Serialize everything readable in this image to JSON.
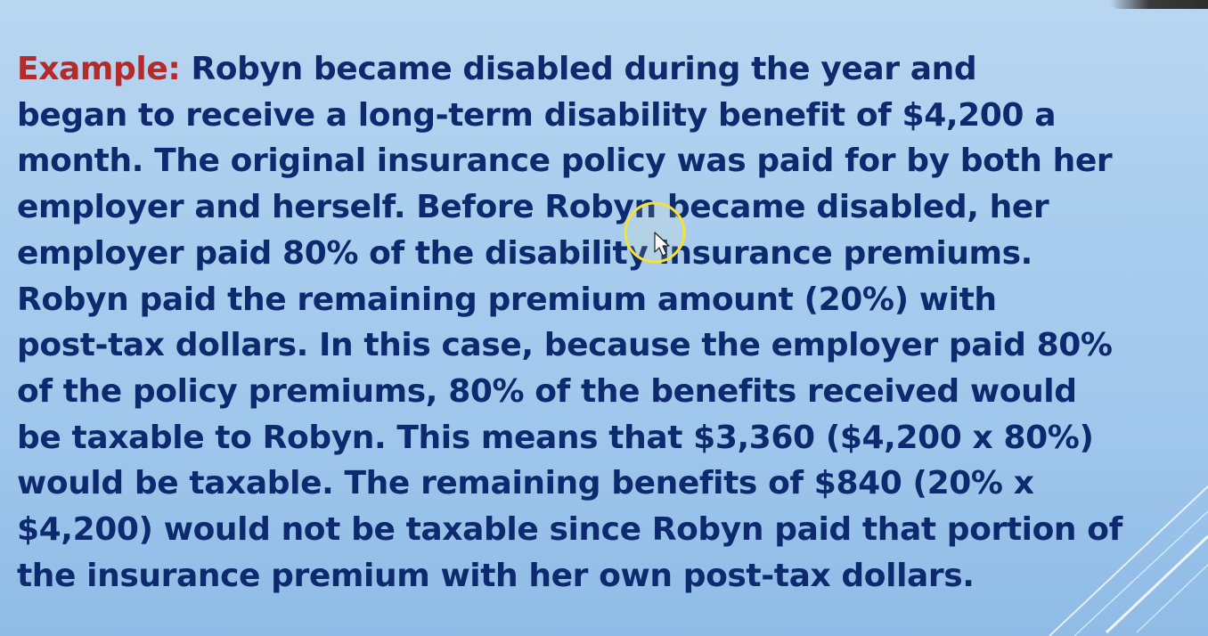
{
  "slide": {
    "label": "Example:",
    "lines": [
      " Robyn became disabled during the year and",
      "began to receive a long-term disability benefit of $4,200 a",
      "month. The original insurance policy was paid for by both her",
      "employer and herself. Before Robyn became disabled, her",
      "employer paid 80% of the disability insurance premiums.",
      "Robyn paid the remaining premium amount (20%) with",
      "post-tax dollars. In this case, because the employer paid 80%",
      "of the policy premiums, 80% of the benefits received would",
      "be taxable to Robyn. This means that $3,360 ($4,200 x 80%)",
      "would be taxable. The remaining benefits of $840 (20% x",
      "$4,200) would not be taxable since Robyn paid that portion of",
      "the insurance premium with her own post-tax dollars."
    ]
  },
  "colors": {
    "label": "#b52a2a",
    "body_text": "#0e2a6e",
    "background_top": "#b9d6f1",
    "background_bottom": "#8fbbe6",
    "cursor_highlight": "#f2e23a"
  },
  "icons": {
    "cursor": "mouse-pointer-icon",
    "highlight": "cursor-highlight-ring-icon"
  }
}
